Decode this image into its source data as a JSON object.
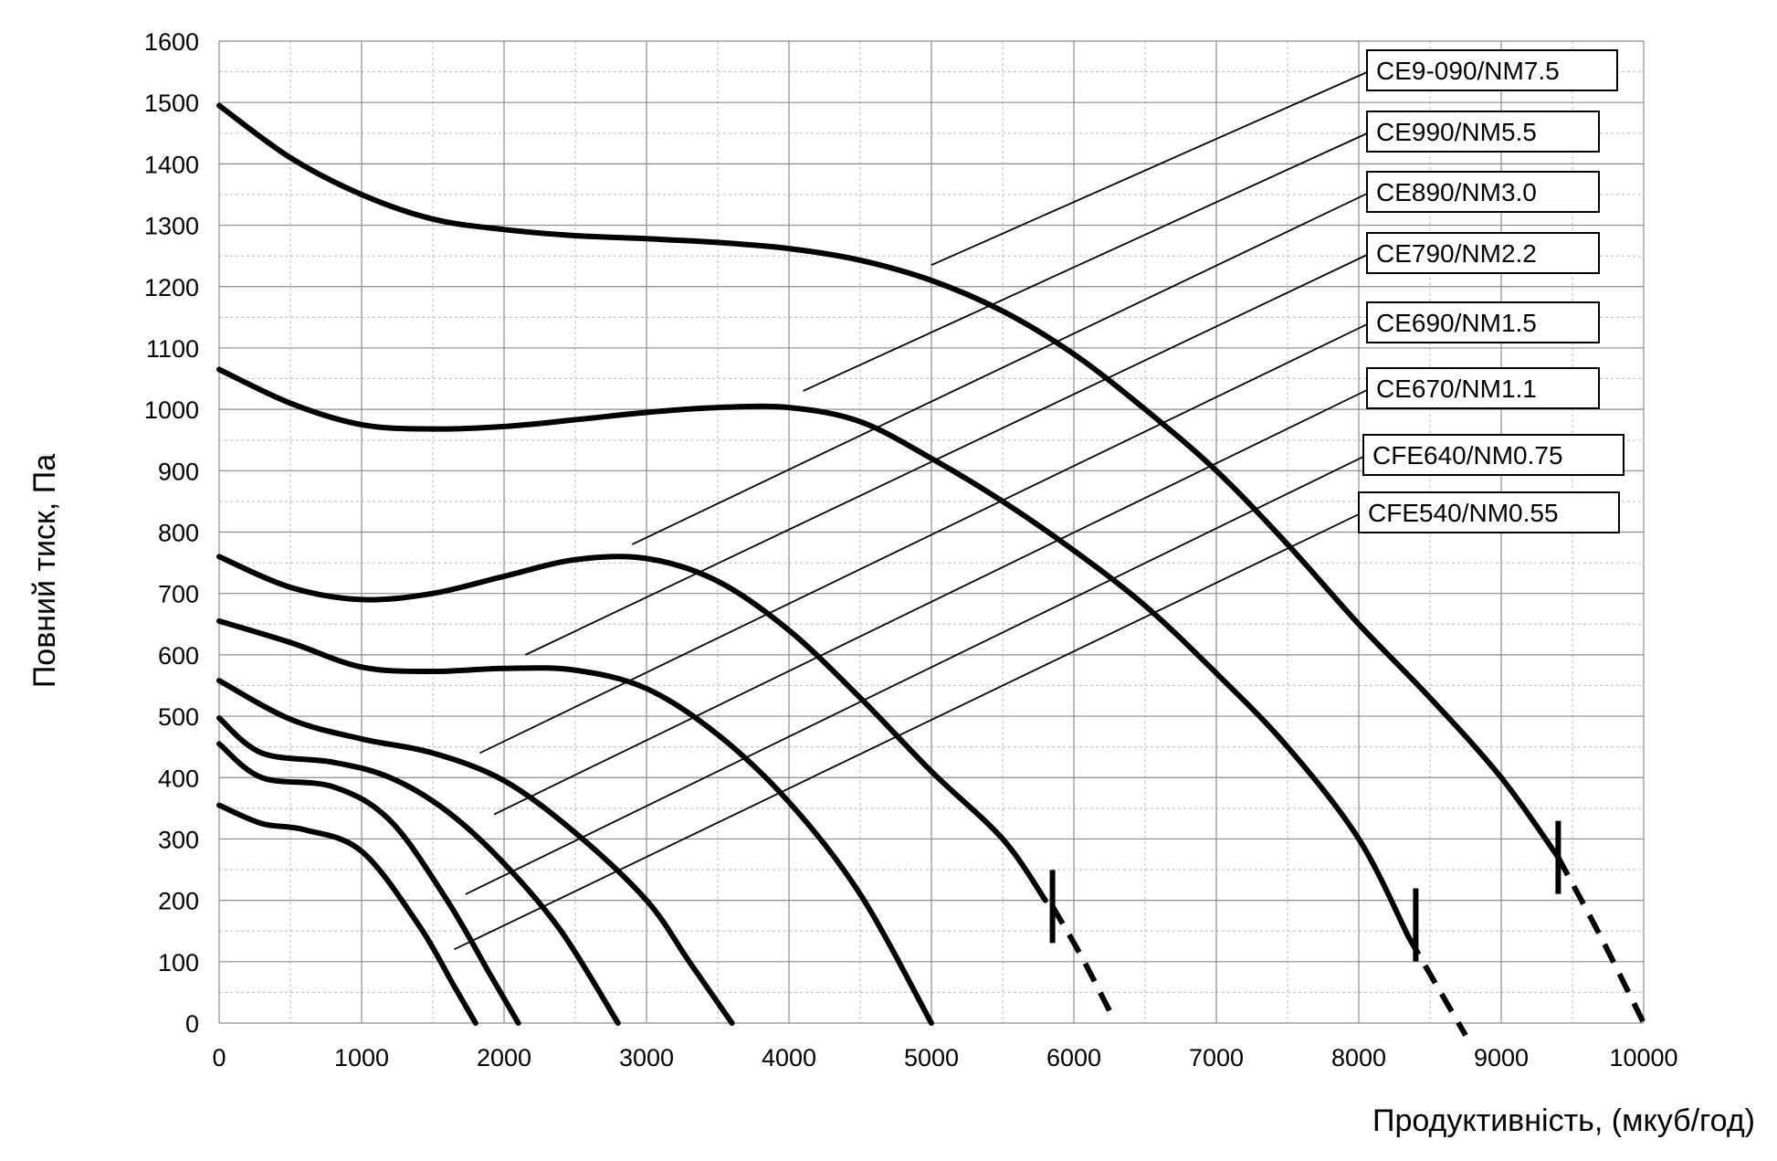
{
  "chart_data": {
    "type": "line",
    "title": "",
    "xlabel": "Продуктивність, (мкуб/год)",
    "ylabel": "Повний тиск, Па",
    "xlim": [
      0,
      10000
    ],
    "ylim": [
      0,
      1600
    ],
    "xticks": [
      0,
      1000,
      2000,
      3000,
      4000,
      5000,
      6000,
      7000,
      8000,
      9000,
      10000
    ],
    "yticks": [
      0,
      100,
      200,
      300,
      400,
      500,
      600,
      700,
      800,
      900,
      1000,
      1100,
      1200,
      1300,
      1400,
      1500,
      1600
    ],
    "grid": true,
    "legend_position": "right, labels with leader lines",
    "series": [
      {
        "name": "CE9-090/NM7.5",
        "points": [
          [
            0,
            1495
          ],
          [
            500,
            1410
          ],
          [
            1000,
            1350
          ],
          [
            1500,
            1310
          ],
          [
            2000,
            1293
          ],
          [
            2500,
            1283
          ],
          [
            3000,
            1278
          ],
          [
            3500,
            1272
          ],
          [
            4000,
            1262
          ],
          [
            4500,
            1243
          ],
          [
            5000,
            1210
          ],
          [
            5500,
            1160
          ],
          [
            6000,
            1090
          ],
          [
            6500,
            1000
          ],
          [
            7000,
            900
          ],
          [
            7500,
            780
          ],
          [
            8000,
            650
          ],
          [
            8500,
            530
          ],
          [
            9000,
            400
          ],
          [
            9400,
            270
          ]
        ],
        "dashed": [
          [
            9400,
            270
          ],
          [
            9700,
            140
          ],
          [
            10000,
            0
          ]
        ],
        "limit_marker": [
          9400,
          270
        ]
      },
      {
        "name": "CE990/NM5.5",
        "points": [
          [
            0,
            1065
          ],
          [
            500,
            1010
          ],
          [
            1000,
            975
          ],
          [
            1500,
            968
          ],
          [
            2000,
            972
          ],
          [
            2500,
            983
          ],
          [
            3000,
            995
          ],
          [
            3500,
            1003
          ],
          [
            4000,
            1003
          ],
          [
            4500,
            980
          ],
          [
            5000,
            920
          ],
          [
            5500,
            850
          ],
          [
            6000,
            770
          ],
          [
            6500,
            680
          ],
          [
            7000,
            570
          ],
          [
            7500,
            450
          ],
          [
            8000,
            300
          ],
          [
            8350,
            140
          ]
        ],
        "dashed": [
          [
            8350,
            140
          ],
          [
            8550,
            60
          ],
          [
            8750,
            -20
          ]
        ],
        "limit_marker": [
          8400,
          160
        ]
      },
      {
        "name": "CE890/NM3.0",
        "points": [
          [
            0,
            760
          ],
          [
            500,
            710
          ],
          [
            1000,
            690
          ],
          [
            1500,
            700
          ],
          [
            2000,
            728
          ],
          [
            2500,
            755
          ],
          [
            3000,
            757
          ],
          [
            3500,
            720
          ],
          [
            4000,
            640
          ],
          [
            4500,
            530
          ],
          [
            5000,
            410
          ],
          [
            5500,
            300
          ],
          [
            5800,
            200
          ]
        ],
        "dashed": [
          [
            5850,
            190
          ],
          [
            6050,
            110
          ],
          [
            6250,
            20
          ]
        ],
        "limit_marker": [
          5850,
          190
        ]
      },
      {
        "name": "CE790/NM2.2",
        "points": [
          [
            0,
            655
          ],
          [
            500,
            620
          ],
          [
            1000,
            580
          ],
          [
            1500,
            573
          ],
          [
            2000,
            578
          ],
          [
            2500,
            575
          ],
          [
            3000,
            545
          ],
          [
            3500,
            470
          ],
          [
            4000,
            360
          ],
          [
            4500,
            210
          ],
          [
            5000,
            0
          ]
        ]
      },
      {
        "name": "CE690/NM1.5",
        "points": [
          [
            0,
            558
          ],
          [
            500,
            495
          ],
          [
            1000,
            463
          ],
          [
            1500,
            440
          ],
          [
            2000,
            395
          ],
          [
            2500,
            310
          ],
          [
            3000,
            200
          ],
          [
            3300,
            100
          ],
          [
            3600,
            0
          ]
        ]
      },
      {
        "name": "CE670/NM1.1",
        "points": [
          [
            0,
            497
          ],
          [
            300,
            440
          ],
          [
            800,
            425
          ],
          [
            1200,
            400
          ],
          [
            1600,
            345
          ],
          [
            2000,
            260
          ],
          [
            2400,
            150
          ],
          [
            2800,
            0
          ]
        ]
      },
      {
        "name": "CFE640/NM0.75",
        "points": [
          [
            0,
            455
          ],
          [
            300,
            400
          ],
          [
            800,
            385
          ],
          [
            1200,
            330
          ],
          [
            1600,
            200
          ],
          [
            1900,
            80
          ],
          [
            2100,
            0
          ]
        ]
      },
      {
        "name": "CFE540/NM0.55",
        "points": [
          [
            0,
            355
          ],
          [
            300,
            325
          ],
          [
            600,
            315
          ],
          [
            1000,
            280
          ],
          [
            1400,
            160
          ],
          [
            1650,
            60
          ],
          [
            1800,
            0
          ]
        ]
      }
    ],
    "leader_lines": [
      {
        "label": "CE9-090/NM7.5",
        "from": [
          5000,
          1235
        ]
      },
      {
        "label": "CE990/NM5.5",
        "from": [
          4100,
          1030
        ]
      },
      {
        "label": "CE890/NM3.0",
        "from": [
          2900,
          780
        ]
      },
      {
        "label": "CE790/NM2.2",
        "from": [
          2150,
          600
        ]
      },
      {
        "label": "CE690/NM1.5",
        "from": [
          1830,
          440
        ]
      },
      {
        "label": "CE670/NM1.1",
        "from": [
          1930,
          340
        ]
      },
      {
        "label": "CFE640/NM0.75",
        "from": [
          1730,
          210
        ]
      },
      {
        "label": "CFE540/NM0.55",
        "from": [
          1650,
          120
        ]
      }
    ]
  }
}
